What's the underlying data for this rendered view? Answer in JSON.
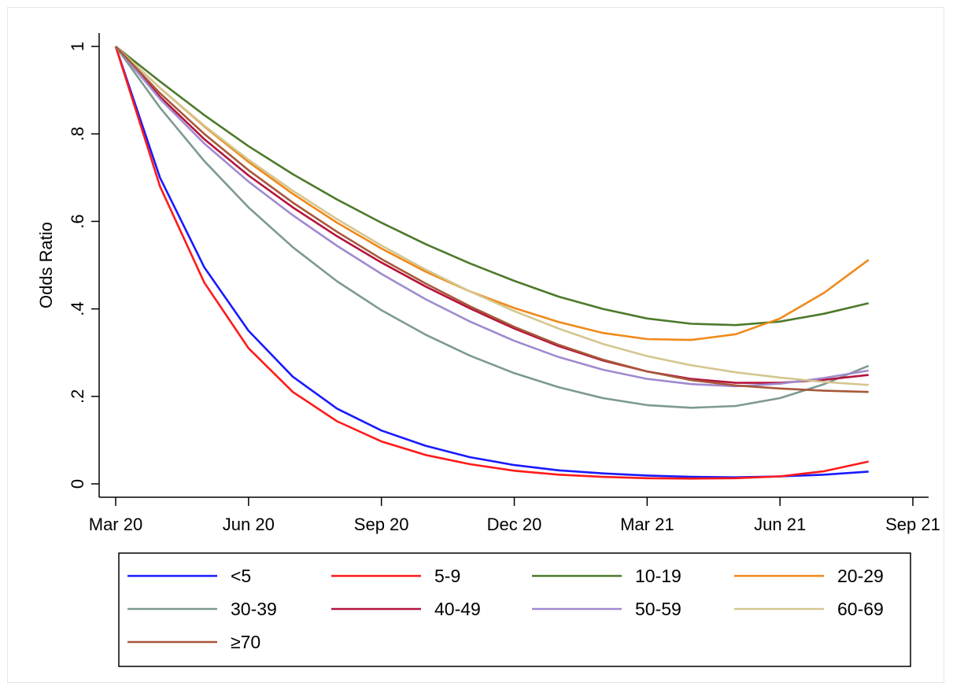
{
  "chart_data": {
    "type": "line",
    "title": "",
    "xlabel": "",
    "ylabel": "Odds Ratio",
    "x_ticks": [
      "Mar 20",
      "Jun 20",
      "Sep 20",
      "Dec 20",
      "Mar 21",
      "Jun 21",
      "Sep 21"
    ],
    "x_tick_values": [
      "2020-03",
      "2020-06",
      "2020-09",
      "2020-12",
      "2021-03",
      "2021-06",
      "2021-09"
    ],
    "y_ticks": [
      "0",
      ".2",
      ".4",
      ".6",
      ".8",
      "1"
    ],
    "y_tick_values": [
      0,
      0.2,
      0.4,
      0.6,
      0.8,
      1
    ],
    "xlim": [
      "2020-03",
      "2021-09"
    ],
    "ylim": [
      -0.02,
      1.03
    ],
    "grid": false,
    "legend_position": "bottom",
    "legend_columns": 4,
    "x": [
      "2020-03",
      "2020-04",
      "2020-05",
      "2020-06",
      "2020-07",
      "2020-08",
      "2020-09",
      "2020-10",
      "2020-11",
      "2020-12",
      "2021-01",
      "2021-02",
      "2021-03",
      "2021-04",
      "2021-05",
      "2021-06",
      "2021-07",
      "2021-08"
    ],
    "series": [
      {
        "name": "<5",
        "color": "#1a1aff",
        "values": [
          1.0,
          0.7,
          0.495,
          0.35,
          0.245,
          0.172,
          0.122,
          0.087,
          0.061,
          0.043,
          0.031,
          0.024,
          0.019,
          0.016,
          0.015,
          0.017,
          0.021,
          0.028
        ]
      },
      {
        "name": "5-9",
        "color": "#ff1a1a",
        "values": [
          1.0,
          0.68,
          0.46,
          0.31,
          0.21,
          0.143,
          0.097,
          0.066,
          0.045,
          0.03,
          0.021,
          0.016,
          0.013,
          0.012,
          0.013,
          0.017,
          0.029,
          0.051
        ]
      },
      {
        "name": "10-19",
        "color": "#4c7a2b",
        "values": [
          1.0,
          0.92,
          0.843,
          0.772,
          0.708,
          0.65,
          0.597,
          0.548,
          0.504,
          0.464,
          0.428,
          0.4,
          0.378,
          0.366,
          0.363,
          0.371,
          0.389,
          0.413
        ]
      },
      {
        "name": "20-29",
        "color": "#f0891a",
        "values": [
          1.0,
          0.905,
          0.817,
          0.736,
          0.663,
          0.597,
          0.538,
          0.485,
          0.44,
          0.402,
          0.37,
          0.345,
          0.331,
          0.329,
          0.342,
          0.378,
          0.437,
          0.512
        ]
      },
      {
        "name": "30-39",
        "color": "#7d9a90",
        "values": [
          1.0,
          0.86,
          0.738,
          0.632,
          0.541,
          0.463,
          0.397,
          0.341,
          0.293,
          0.253,
          0.221,
          0.196,
          0.18,
          0.174,
          0.178,
          0.196,
          0.228,
          0.27
        ]
      },
      {
        "name": "40-49",
        "color": "#b5143c",
        "values": [
          1.0,
          0.885,
          0.788,
          0.705,
          0.632,
          0.566,
          0.506,
          0.451,
          0.401,
          0.355,
          0.315,
          0.282,
          0.257,
          0.24,
          0.231,
          0.231,
          0.238,
          0.249
        ]
      },
      {
        "name": "50-59",
        "color": "#a08ad0",
        "values": [
          1.0,
          0.88,
          0.778,
          0.691,
          0.614,
          0.544,
          0.48,
          0.422,
          0.371,
          0.327,
          0.29,
          0.261,
          0.24,
          0.228,
          0.223,
          0.229,
          0.242,
          0.259
        ]
      },
      {
        "name": "60-69",
        "color": "#d4c690",
        "values": [
          1.0,
          0.905,
          0.819,
          0.741,
          0.67,
          0.605,
          0.545,
          0.49,
          0.44,
          0.395,
          0.355,
          0.32,
          0.292,
          0.271,
          0.255,
          0.243,
          0.233,
          0.226
        ]
      },
      {
        "name": "≥70",
        "color": "#a8573a",
        "values": [
          1.0,
          0.893,
          0.8,
          0.717,
          0.643,
          0.576,
          0.514,
          0.458,
          0.406,
          0.359,
          0.318,
          0.284,
          0.257,
          0.237,
          0.225,
          0.218,
          0.213,
          0.21
        ]
      }
    ]
  }
}
